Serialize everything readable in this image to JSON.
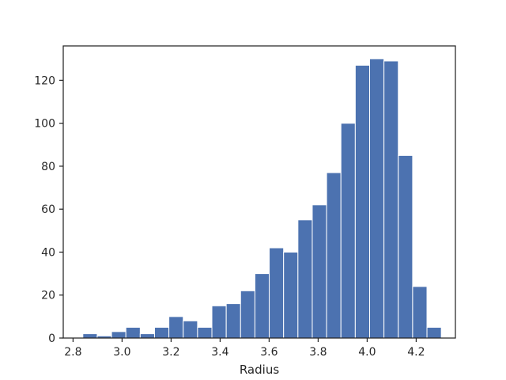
{
  "chart_data": {
    "type": "bar",
    "title": "",
    "xlabel": "Radius",
    "ylabel": "",
    "bin_start": 2.84,
    "bin_width": 0.0585,
    "values": [
      2,
      1,
      3,
      5,
      2,
      5,
      10,
      8,
      5,
      15,
      16,
      22,
      30,
      42,
      40,
      55,
      62,
      77,
      100,
      127,
      130,
      129,
      85,
      24,
      5
    ],
    "xlim": [
      2.76,
      4.36
    ],
    "ylim": [
      0,
      136
    ],
    "xticks": [
      2.8,
      3.0,
      3.2,
      3.4,
      3.6,
      3.8,
      4.0,
      4.2
    ],
    "xtick_labels": [
      "2.8",
      "3.0",
      "3.2",
      "3.4",
      "3.6",
      "3.8",
      "4.0",
      "4.2"
    ],
    "yticks": [
      0,
      20,
      40,
      60,
      80,
      100,
      120
    ],
    "ytick_labels": [
      "0",
      "20",
      "40",
      "60",
      "80",
      "100",
      "120"
    ],
    "grid": false,
    "bar_color": "#4c72b0",
    "edge_color": "#ffffff"
  }
}
